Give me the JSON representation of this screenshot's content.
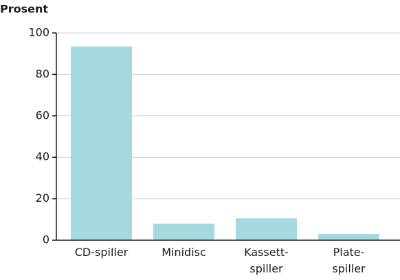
{
  "chart_data": {
    "type": "bar",
    "y_label": "Prosent",
    "categories": [
      "CD-spiller",
      "Minidisc",
      "Kassett-\nspiller",
      "Plate-\nspiller"
    ],
    "values": [
      93.5,
      8,
      10.5,
      3
    ],
    "color": "#a6d9de",
    "ylim": [
      0,
      100
    ],
    "yticks": [
      0,
      20,
      40,
      60,
      80,
      100
    ],
    "grid": true
  }
}
